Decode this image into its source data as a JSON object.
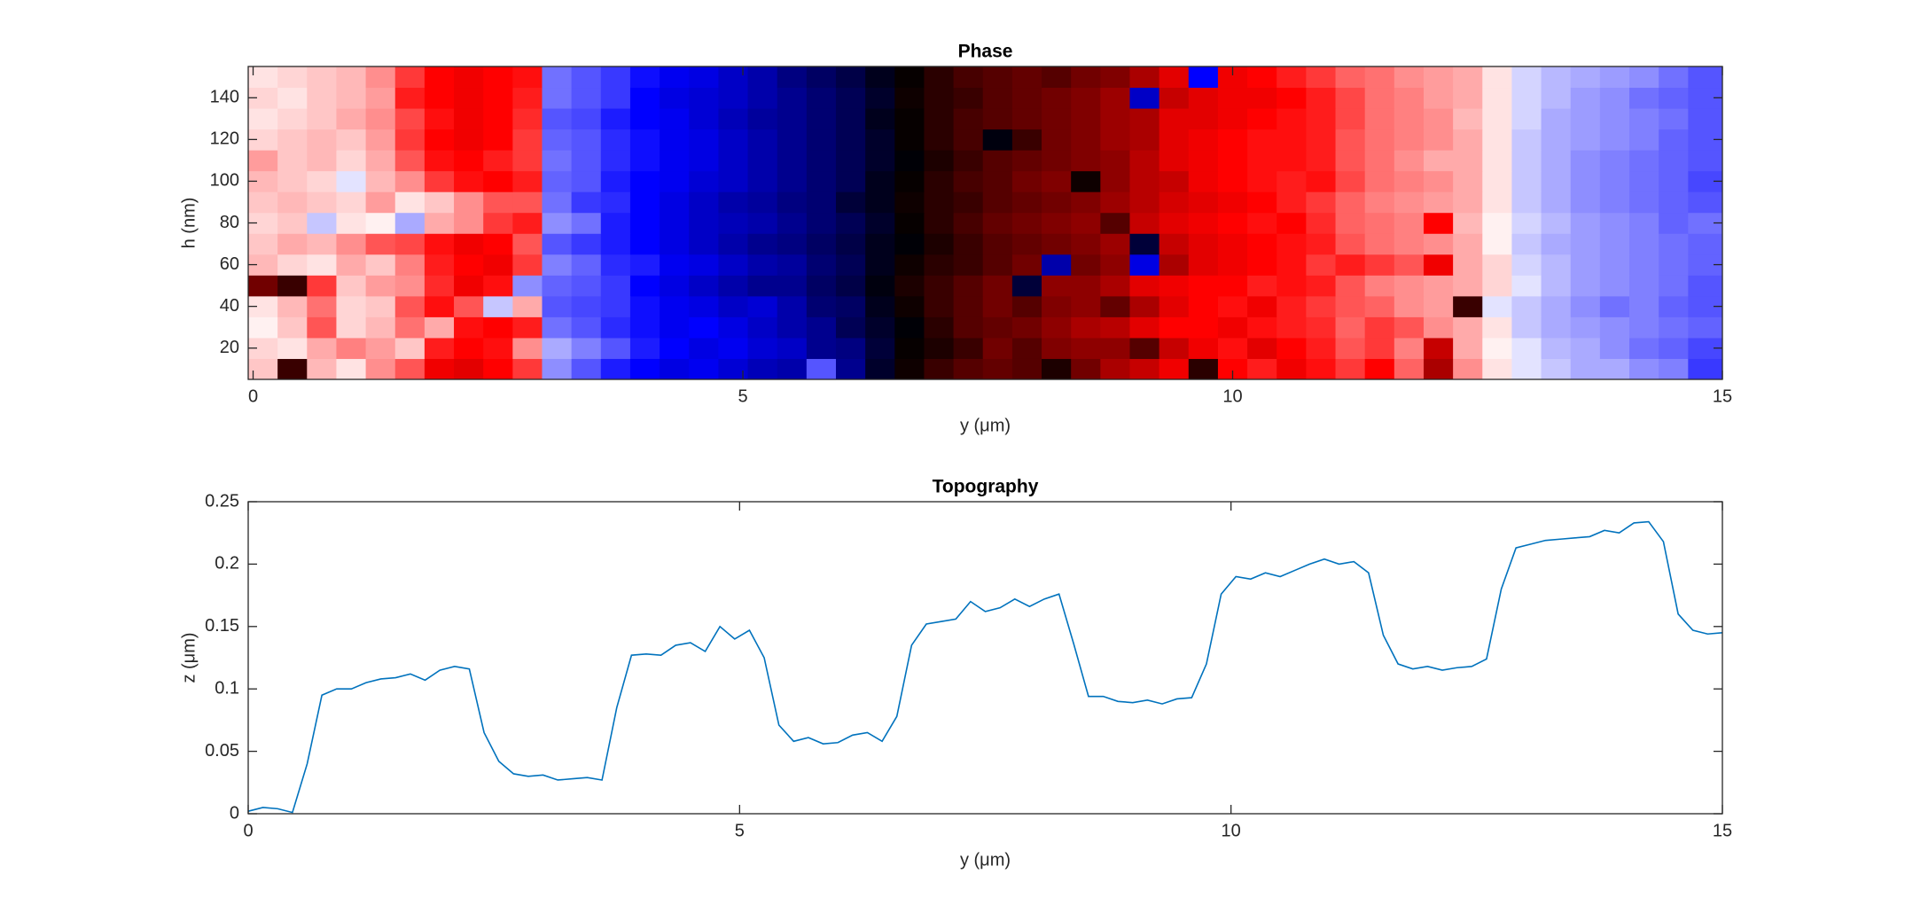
{
  "chart_data": [
    {
      "type": "heatmap",
      "title": "Phase",
      "xlabel": "y (μm)",
      "ylabel": "h (nm)",
      "xlim": [
        -0.05,
        15
      ],
      "ylim": [
        5,
        155
      ],
      "xticks": [
        0,
        5,
        10,
        15
      ],
      "yticks": [
        20,
        40,
        60,
        80,
        100,
        120,
        140
      ],
      "clim": [
        -180,
        180
      ],
      "colormap": [
        "#000000",
        "#0000ff",
        "#ffffff",
        "#ff0000",
        "#000000"
      ],
      "x": [
        0.1,
        0.4,
        0.7,
        1.0,
        1.3,
        1.6,
        1.9,
        2.2,
        2.5,
        2.8,
        3.1,
        3.4,
        3.7,
        4.0,
        4.3,
        4.6,
        4.9,
        5.2,
        5.5,
        5.8,
        6.1,
        6.4,
        6.7,
        7.0,
        7.3,
        7.6,
        7.9,
        8.2,
        8.5,
        8.8,
        9.1,
        9.4,
        9.7,
        10.0,
        10.3,
        10.6,
        10.9,
        11.2,
        11.5,
        11.8,
        12.1,
        12.4,
        12.7,
        13.0,
        13.3,
        13.6,
        13.9,
        14.2,
        14.5,
        14.8
      ],
      "y": [
        10,
        20,
        30,
        40,
        50,
        60,
        70,
        80,
        90,
        100,
        110,
        120,
        130,
        140,
        150
      ],
      "values": [
        [
          20,
          160,
          25,
          10,
          40,
          60,
          95,
          100,
          90,
          70,
          -40,
          -60,
          -80,
          -90,
          -100,
          -95,
          -105,
          -115,
          -120,
          -60,
          -130,
          -165,
          175,
          160,
          150,
          145,
          150,
          170,
          140,
          120,
          110,
          95,
          165,
          90,
          80,
          95,
          85,
          70,
          90,
          55,
          120,
          40,
          10,
          -10,
          -20,
          -30,
          -30,
          -40,
          -45,
          -70
        ],
        [
          15,
          10,
          30,
          45,
          35,
          20,
          80,
          90,
          85,
          40,
          -30,
          -45,
          -60,
          -80,
          -90,
          -100,
          -95,
          -105,
          -110,
          -130,
          -135,
          -160,
          178,
          170,
          160,
          140,
          150,
          135,
          130,
          130,
          150,
          110,
          95,
          85,
          100,
          90,
          80,
          60,
          70,
          45,
          110,
          30,
          5,
          -10,
          -25,
          -30,
          -40,
          -50,
          -55,
          -65
        ],
        [
          5,
          20,
          60,
          15,
          25,
          50,
          30,
          85,
          90,
          80,
          -50,
          -60,
          -75,
          -85,
          -95,
          -90,
          -100,
          -110,
          -120,
          -130,
          -150,
          -165,
          -178,
          165,
          150,
          145,
          140,
          130,
          120,
          115,
          100,
          90,
          90,
          95,
          85,
          80,
          75,
          55,
          70,
          60,
          40,
          30,
          10,
          -20,
          -30,
          -35,
          -40,
          -45,
          -50,
          -55
        ],
        [
          10,
          25,
          50,
          15,
          20,
          60,
          85,
          60,
          -20,
          30,
          -60,
          -65,
          -70,
          -85,
          -95,
          -100,
          -110,
          -105,
          -120,
          -140,
          -145,
          -170,
          175,
          160,
          150,
          140,
          150,
          135,
          130,
          145,
          120,
          100,
          90,
          85,
          95,
          80,
          70,
          60,
          55,
          40,
          35,
          160,
          -10,
          -20,
          -30,
          -40,
          -50,
          -45,
          -55,
          -60
        ],
        [
          140,
          160,
          70,
          20,
          35,
          40,
          75,
          95,
          85,
          -40,
          -55,
          -60,
          -70,
          -90,
          -100,
          -110,
          -120,
          -130,
          -130,
          -145,
          -155,
          -175,
          170,
          160,
          150,
          140,
          -160,
          130,
          130,
          120,
          100,
          95,
          90,
          90,
          80,
          85,
          80,
          60,
          45,
          40,
          35,
          30,
          15,
          -10,
          -25,
          -35,
          -40,
          -45,
          -50,
          -60
        ],
        [
          25,
          15,
          10,
          30,
          20,
          45,
          80,
          90,
          95,
          70,
          -45,
          -55,
          -75,
          -80,
          -95,
          -100,
          -110,
          -120,
          -125,
          -140,
          -150,
          -170,
          175,
          165,
          160,
          150,
          140,
          -120,
          140,
          130,
          -100,
          120,
          100,
          95,
          90,
          85,
          70,
          80,
          70,
          60,
          95,
          30,
          15,
          -15,
          -25,
          -35,
          -40,
          -45,
          -50,
          -55
        ],
        [
          20,
          30,
          25,
          40,
          60,
          65,
          85,
          95,
          90,
          60,
          -60,
          -70,
          -80,
          -90,
          -100,
          -110,
          -120,
          -130,
          -135,
          -145,
          -155,
          -170,
          -178,
          170,
          160,
          150,
          145,
          140,
          135,
          125,
          -160,
          110,
          100,
          95,
          90,
          85,
          80,
          60,
          50,
          45,
          40,
          30,
          5,
          -20,
          -30,
          -35,
          -40,
          -45,
          -50,
          -55
        ],
        [
          15,
          20,
          -20,
          10,
          5,
          -30,
          30,
          40,
          70,
          80,
          -40,
          -50,
          -80,
          -90,
          -100,
          -110,
          -115,
          -120,
          -130,
          -140,
          -150,
          -165,
          178,
          165,
          155,
          145,
          140,
          135,
          130,
          150,
          110,
          100,
          95,
          90,
          85,
          90,
          75,
          55,
          50,
          45,
          90,
          25,
          5,
          -15,
          -25,
          -35,
          -40,
          -45,
          -55,
          -50
        ],
        [
          20,
          25,
          20,
          15,
          35,
          10,
          20,
          40,
          60,
          60,
          -50,
          -70,
          -75,
          -90,
          -100,
          -110,
          -120,
          -125,
          -135,
          -140,
          -160,
          -170,
          175,
          165,
          160,
          150,
          145,
          140,
          135,
          125,
          115,
          105,
          100,
          95,
          90,
          80,
          70,
          55,
          45,
          40,
          35,
          30,
          10,
          -20,
          -30,
          -40,
          -45,
          -50,
          -55,
          -60
        ],
        [
          25,
          20,
          15,
          -10,
          25,
          40,
          70,
          85,
          90,
          80,
          -55,
          -60,
          -80,
          -90,
          -95,
          -105,
          -110,
          -120,
          -130,
          -140,
          -150,
          -170,
          178,
          165,
          155,
          150,
          140,
          135,
          175,
          130,
          115,
          110,
          95,
          90,
          85,
          80,
          85,
          65,
          50,
          45,
          40,
          30,
          10,
          -20,
          -30,
          -40,
          -45,
          -50,
          -55,
          -65
        ],
        [
          35,
          20,
          25,
          15,
          30,
          60,
          85,
          90,
          80,
          70,
          -50,
          -60,
          -75,
          -85,
          -95,
          -100,
          -110,
          -120,
          -130,
          -140,
          -150,
          -165,
          -178,
          170,
          160,
          150,
          145,
          140,
          135,
          130,
          115,
          100,
          95,
          90,
          85,
          85,
          80,
          60,
          50,
          40,
          30,
          30,
          10,
          -20,
          -30,
          -40,
          -45,
          -50,
          -55,
          -60
        ],
        [
          15,
          20,
          25,
          20,
          35,
          70,
          90,
          95,
          90,
          70,
          -55,
          -60,
          -75,
          -85,
          -95,
          -100,
          -110,
          -120,
          -130,
          -140,
          -150,
          -165,
          178,
          165,
          155,
          -175,
          160,
          140,
          135,
          125,
          120,
          100,
          95,
          90,
          85,
          85,
          80,
          60,
          50,
          45,
          40,
          30,
          10,
          -20,
          -30,
          -35,
          -40,
          -45,
          -55,
          -60
        ],
        [
          10,
          15,
          20,
          30,
          40,
          65,
          85,
          95,
          90,
          75,
          -60,
          -65,
          -80,
          -90,
          -95,
          -105,
          -115,
          -125,
          -130,
          -140,
          -150,
          -170,
          178,
          165,
          155,
          150,
          145,
          140,
          135,
          125,
          120,
          100,
          100,
          95,
          90,
          85,
          80,
          65,
          50,
          45,
          40,
          25,
          10,
          -15,
          -30,
          -35,
          -40,
          -45,
          -50,
          -60
        ],
        [
          15,
          10,
          20,
          25,
          35,
          80,
          90,
          95,
          90,
          80,
          -50,
          -60,
          -70,
          -90,
          -100,
          -105,
          -110,
          -120,
          -130,
          -140,
          -150,
          -165,
          175,
          165,
          160,
          150,
          145,
          140,
          135,
          125,
          -110,
          110,
          100,
          95,
          95,
          90,
          80,
          65,
          50,
          45,
          35,
          30,
          10,
          -15,
          -25,
          -35,
          -40,
          -50,
          -55,
          -60
        ],
        [
          10,
          15,
          20,
          25,
          40,
          70,
          90,
          95,
          90,
          85,
          -50,
          -60,
          -70,
          -85,
          -95,
          -100,
          -110,
          -120,
          -135,
          -145,
          -155,
          -170,
          178,
          165,
          155,
          150,
          145,
          150,
          140,
          135,
          120,
          100,
          -90,
          95,
          90,
          80,
          70,
          55,
          50,
          40,
          35,
          30,
          10,
          -15,
          -25,
          -30,
          -35,
          -40,
          -50,
          -60
        ]
      ]
    },
    {
      "type": "line",
      "title": "Topography",
      "xlabel": "y (μm)",
      "ylabel": "z (μm)",
      "xlim": [
        0,
        15
      ],
      "ylim": [
        0,
        0.25
      ],
      "xticks": [
        0,
        5,
        10,
        15
      ],
      "yticks": [
        0,
        0.05,
        0.1,
        0.15,
        0.2,
        0.25
      ],
      "x": [
        0,
        0.15,
        0.3,
        0.45,
        0.6,
        0.75,
        0.9,
        1.05,
        1.2,
        1.35,
        1.5,
        1.65,
        1.8,
        1.95,
        2.1,
        2.25,
        2.4,
        2.55,
        2.7,
        2.85,
        3.0,
        3.15,
        3.3,
        3.45,
        3.6,
        3.75,
        3.9,
        4.05,
        4.2,
        4.35,
        4.5,
        4.65,
        4.8,
        4.95,
        5.1,
        5.25,
        5.4,
        5.55,
        5.7,
        5.85,
        6.0,
        6.15,
        6.3,
        6.45,
        6.6,
        6.75,
        6.9,
        7.05,
        7.2,
        7.35,
        7.5,
        7.65,
        7.8,
        7.95,
        8.1,
        8.25,
        8.4,
        8.55,
        8.7,
        8.85,
        9.0,
        9.15,
        9.3,
        9.45,
        9.6,
        9.75,
        9.9,
        10.05,
        10.2,
        10.35,
        10.5,
        10.65,
        10.8,
        10.95,
        11.1,
        11.25,
        11.4,
        11.55,
        11.7,
        11.85,
        12.0,
        12.15,
        12.3,
        12.45,
        12.6,
        12.75,
        12.9,
        13.05,
        13.2,
        13.35,
        13.5,
        13.65,
        13.8,
        13.95,
        14.1,
        14.25,
        14.4,
        14.55,
        14.7,
        14.85,
        15.0
      ],
      "series": [
        {
          "color": "#0072bd",
          "values": [
            0.002,
            0.005,
            0.004,
            0.001,
            0.04,
            0.095,
            0.1,
            0.1,
            0.105,
            0.108,
            0.109,
            0.112,
            0.107,
            0.115,
            0.118,
            0.116,
            0.065,
            0.042,
            0.032,
            0.03,
            0.031,
            0.027,
            0.028,
            0.029,
            0.027,
            0.085,
            0.127,
            0.128,
            0.127,
            0.135,
            0.137,
            0.13,
            0.15,
            0.14,
            0.147,
            0.125,
            0.071,
            0.058,
            0.061,
            0.056,
            0.057,
            0.063,
            0.065,
            0.058,
            0.078,
            0.135,
            0.152,
            0.154,
            0.156,
            0.17,
            0.162,
            0.165,
            0.172,
            0.166,
            0.172,
            0.176,
            0.136,
            0.094,
            0.094,
            0.09,
            0.089,
            0.091,
            0.088,
            0.092,
            0.093,
            0.12,
            0.176,
            0.19,
            0.188,
            0.193,
            0.19,
            0.195,
            0.2,
            0.204,
            0.2,
            0.202,
            0.193,
            0.143,
            0.12,
            0.116,
            0.118,
            0.115,
            0.117,
            0.118,
            0.124,
            0.18,
            0.213,
            0.216,
            0.219,
            0.22,
            0.221,
            0.222,
            0.227,
            0.225,
            0.233,
            0.234,
            0.218,
            0.16,
            0.147,
            0.144,
            0.145
          ]
        }
      ]
    }
  ]
}
